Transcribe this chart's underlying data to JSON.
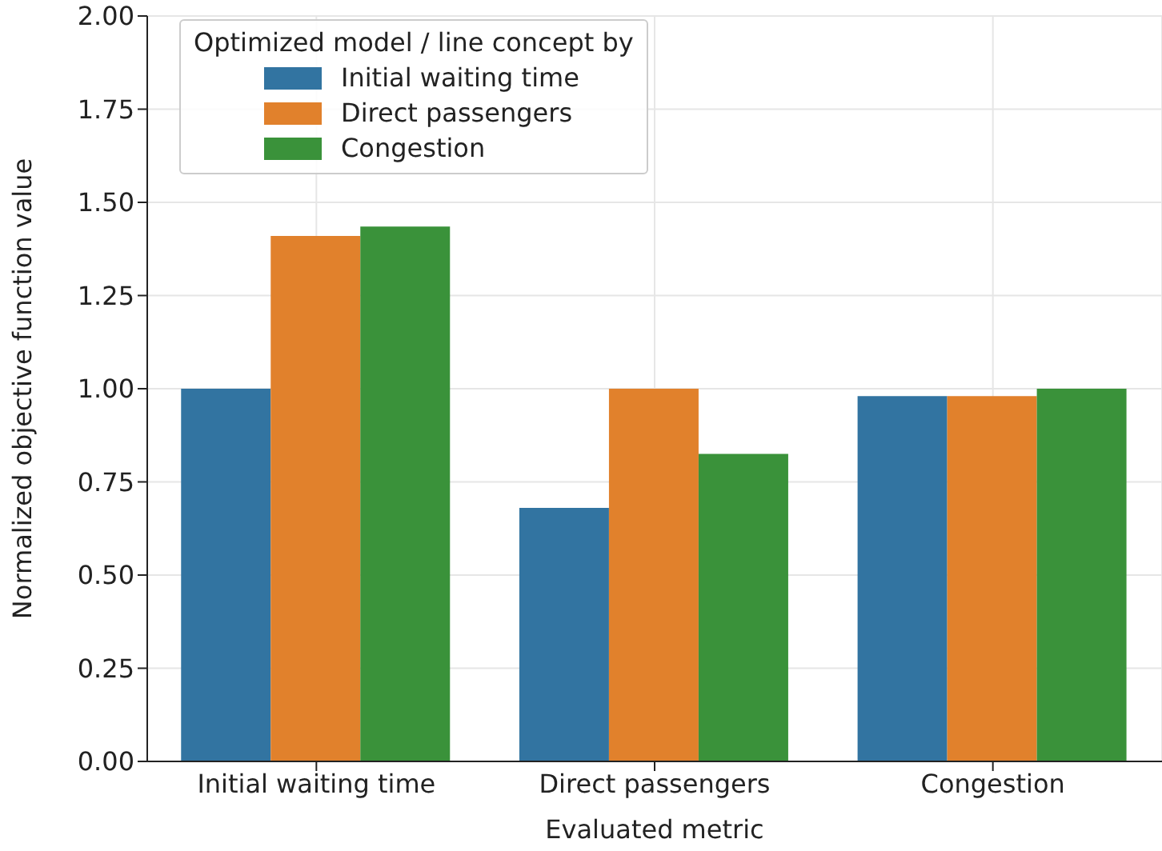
{
  "chart_data": {
    "type": "bar",
    "xlabel": "Evaluated metric",
    "ylabel": "Normalized objective function value",
    "legend_title": "Optimized model / line concept by",
    "categories": [
      "Initial waiting time",
      "Direct passengers",
      "Congestion"
    ],
    "series": [
      {
        "name": "Initial waiting time",
        "color": "#3274a1",
        "values": [
          1.0,
          0.68,
          0.98
        ]
      },
      {
        "name": "Direct passengers",
        "color": "#e1812c",
        "values": [
          1.41,
          1.0,
          0.98
        ]
      },
      {
        "name": "Congestion",
        "color": "#3a923a",
        "values": [
          1.435,
          0.825,
          1.0
        ]
      }
    ],
    "ylim": [
      0,
      2
    ],
    "yticks": [
      {
        "value": 0,
        "label": "0.00"
      },
      {
        "value": 0.25,
        "label": "0.25"
      },
      {
        "value": 0.5,
        "label": "0.50"
      },
      {
        "value": 0.75,
        "label": "0.75"
      },
      {
        "value": 1,
        "label": "1.00"
      },
      {
        "value": 1.25,
        "label": "1.25"
      },
      {
        "value": 1.5,
        "label": "1.50"
      },
      {
        "value": 1.75,
        "label": "1.75"
      },
      {
        "value": 2,
        "label": "2.00"
      }
    ],
    "grid": true,
    "legend": "top left"
  }
}
